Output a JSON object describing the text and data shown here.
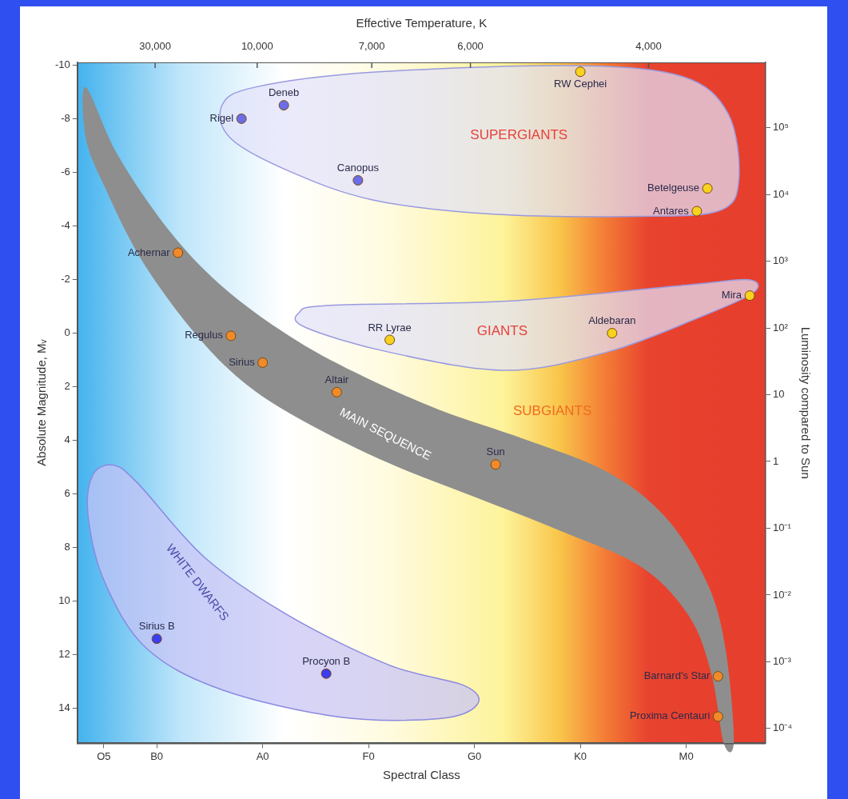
{
  "chart_data": {
    "type": "scatter",
    "x2label": "Effective Temperature, K",
    "xlabel": "Spectral Class",
    "ylabel": "Absolute Magnitude, Mᵥ",
    "y2label": "Luminosity compared to Sun",
    "categories": [
      null,
      null,
      "O5",
      null,
      null,
      null,
      null,
      "B0",
      null,
      null,
      null,
      null,
      null,
      null,
      null,
      null,
      null,
      "A0",
      null,
      null,
      null,
      null,
      null,
      null,
      null,
      null,
      null,
      "F0",
      null,
      null,
      null,
      null,
      null,
      null,
      null,
      null,
      null,
      "G0",
      null,
      null,
      null,
      null,
      null,
      null,
      null,
      null,
      null,
      "K0",
      null,
      null,
      null,
      null,
      null,
      null,
      null,
      null,
      null,
      "M0",
      null,
      null,
      null,
      null,
      null,
      null,
      null
    ],
    "ylim": [
      15.3,
      -10.1
    ],
    "yticks": [
      -10,
      -8,
      -6,
      -4,
      -2,
      0,
      2,
      4,
      6,
      8,
      10,
      12,
      14
    ],
    "log": "y2",
    "y2lim": [
      6e-05,
      950000
    ],
    "y2ticks": [
      {
        "value": 100000,
        "label": "10⁵"
      },
      {
        "value": 10000,
        "label": "10⁴"
      },
      {
        "value": 1000,
        "label": "10³"
      },
      {
        "value": 100,
        "label": "10²"
      },
      10,
      1,
      {
        "value": 0.1,
        "label": "10⁻¹"
      },
      {
        "value": 0.01,
        "label": "10⁻²"
      },
      {
        "value": 0.001,
        "label": "10⁻³"
      },
      {
        "value": 0.0001,
        "label": "10⁻⁴"
      }
    ],
    "marker": "circle",
    "series": [
      {
        "name": "Rigel",
        "color": "#6b6ee8",
        "values": [
          null,
          null,
          null,
          null,
          null,
          null,
          null,
          null,
          null,
          null,
          null,
          null,
          null,
          null,
          null,
          -8.0,
          null,
          null,
          null,
          null,
          null,
          null,
          null,
          null,
          null,
          null,
          null,
          null,
          null,
          null,
          null,
          null,
          null,
          null,
          null,
          null,
          null,
          null,
          null,
          null,
          null,
          null,
          null,
          null,
          null,
          null,
          null,
          null,
          null,
          null,
          null,
          null,
          null,
          null,
          null,
          null,
          null,
          null,
          null,
          null,
          null,
          null,
          null,
          null,
          null
        ]
      },
      {
        "name": "Deneb",
        "color": "#6b6ee8",
        "values": [
          null,
          null,
          null,
          null,
          null,
          null,
          null,
          null,
          null,
          null,
          null,
          null,
          null,
          null,
          null,
          null,
          null,
          null,
          null,
          -8.5,
          null,
          null,
          null,
          null,
          null,
          null,
          null,
          null,
          null,
          null,
          null,
          null,
          null,
          null,
          null,
          null,
          null,
          null,
          null,
          null,
          null,
          null,
          null,
          null,
          null,
          null,
          null,
          null,
          null,
          null,
          null,
          null,
          null,
          null,
          null,
          null,
          null,
          null,
          null,
          null,
          null,
          null,
          null,
          null,
          null
        ]
      },
      {
        "name": "Canopus",
        "color": "#6b6ee8",
        "values": [
          null,
          null,
          null,
          null,
          null,
          null,
          null,
          null,
          null,
          null,
          null,
          null,
          null,
          null,
          null,
          null,
          null,
          null,
          null,
          null,
          null,
          null,
          null,
          null,
          null,
          null,
          -5.7,
          null,
          null,
          null,
          null,
          null,
          null,
          null,
          null,
          null,
          null,
          null,
          null,
          null,
          null,
          null,
          null,
          null,
          null,
          null,
          null,
          null,
          null,
          null,
          null,
          null,
          null,
          null,
          null,
          null,
          null,
          null,
          null,
          null,
          null,
          null,
          null,
          null,
          null
        ]
      },
      {
        "name": "RW Cephei",
        "color": "#f7d21e",
        "values": [
          null,
          null,
          null,
          null,
          null,
          null,
          null,
          null,
          null,
          null,
          null,
          null,
          null,
          null,
          null,
          null,
          null,
          null,
          null,
          null,
          null,
          null,
          null,
          null,
          null,
          null,
          null,
          null,
          null,
          null,
          null,
          null,
          null,
          null,
          null,
          null,
          null,
          null,
          null,
          null,
          null,
          null,
          null,
          null,
          null,
          null,
          null,
          -9.75,
          null,
          null,
          null,
          null,
          null,
          null,
          null,
          null,
          null,
          null,
          null,
          null,
          null,
          null,
          null,
          null,
          null
        ]
      },
      {
        "name": "Betelgeuse",
        "color": "#f7d21e",
        "values": [
          null,
          null,
          null,
          null,
          null,
          null,
          null,
          null,
          null,
          null,
          null,
          null,
          null,
          null,
          null,
          null,
          null,
          null,
          null,
          null,
          null,
          null,
          null,
          null,
          null,
          null,
          null,
          null,
          null,
          null,
          null,
          null,
          null,
          null,
          null,
          null,
          null,
          null,
          null,
          null,
          null,
          null,
          null,
          null,
          null,
          null,
          null,
          null,
          null,
          null,
          null,
          null,
          null,
          null,
          null,
          null,
          null,
          null,
          null,
          -5.4,
          null,
          null,
          null,
          null,
          null
        ]
      },
      {
        "name": "Antares",
        "color": "#f7d21e",
        "values": [
          null,
          null,
          null,
          null,
          null,
          null,
          null,
          null,
          null,
          null,
          null,
          null,
          null,
          null,
          null,
          null,
          null,
          null,
          null,
          null,
          null,
          null,
          null,
          null,
          null,
          null,
          null,
          null,
          null,
          null,
          null,
          null,
          null,
          null,
          null,
          null,
          null,
          null,
          null,
          null,
          null,
          null,
          null,
          null,
          null,
          null,
          null,
          null,
          null,
          null,
          null,
          null,
          null,
          null,
          null,
          null,
          null,
          null,
          -4.55,
          null,
          null,
          null,
          null,
          null,
          null
        ]
      },
      {
        "name": "RR Lyrae",
        "color": "#f7d21e",
        "values": [
          null,
          null,
          null,
          null,
          null,
          null,
          null,
          null,
          null,
          null,
          null,
          null,
          null,
          null,
          null,
          null,
          null,
          null,
          null,
          null,
          null,
          null,
          null,
          null,
          null,
          null,
          null,
          null,
          null,
          0.25,
          null,
          null,
          null,
          null,
          null,
          null,
          null,
          null,
          null,
          null,
          null,
          null,
          null,
          null,
          null,
          null,
          null,
          null,
          null,
          null,
          null,
          null,
          null,
          null,
          null,
          null,
          null,
          null,
          null,
          null,
          null,
          null,
          null,
          null,
          null
        ]
      },
      {
        "name": "Aldebaran",
        "color": "#f7d21e",
        "values": [
          null,
          null,
          null,
          null,
          null,
          null,
          null,
          null,
          null,
          null,
          null,
          null,
          null,
          null,
          null,
          null,
          null,
          null,
          null,
          null,
          null,
          null,
          null,
          null,
          null,
          null,
          null,
          null,
          null,
          null,
          null,
          null,
          null,
          null,
          null,
          null,
          null,
          null,
          null,
          null,
          null,
          null,
          null,
          null,
          null,
          null,
          null,
          null,
          null,
          null,
          0.0,
          null,
          null,
          null,
          null,
          null,
          null,
          null,
          null,
          null,
          null,
          null,
          null,
          null,
          null
        ]
      },
      {
        "name": "Mira",
        "color": "#f7d21e",
        "values": [
          null,
          null,
          null,
          null,
          null,
          null,
          null,
          null,
          null,
          null,
          null,
          null,
          null,
          null,
          null,
          null,
          null,
          null,
          null,
          null,
          null,
          null,
          null,
          null,
          null,
          null,
          null,
          null,
          null,
          null,
          null,
          null,
          null,
          null,
          null,
          null,
          null,
          null,
          null,
          null,
          null,
          null,
          null,
          null,
          null,
          null,
          null,
          null,
          null,
          null,
          null,
          null,
          null,
          null,
          null,
          null,
          null,
          null,
          null,
          null,
          null,
          null,
          null,
          -1.4,
          null
        ]
      },
      {
        "name": "Achernar",
        "color": "#f08a2a",
        "values": [
          null,
          null,
          null,
          null,
          null,
          null,
          null,
          null,
          null,
          -3.0,
          null,
          null,
          null,
          null,
          null,
          null,
          null,
          null,
          null,
          null,
          null,
          null,
          null,
          null,
          null,
          null,
          null,
          null,
          null,
          null,
          null,
          null,
          null,
          null,
          null,
          null,
          null,
          null,
          null,
          null,
          null,
          null,
          null,
          null,
          null,
          null,
          null,
          null,
          null,
          null,
          null,
          null,
          null,
          null,
          null,
          null,
          null,
          null,
          null,
          null,
          null,
          null,
          null,
          null,
          null
        ]
      },
      {
        "name": "Regulus",
        "color": "#f08a2a",
        "values": [
          null,
          null,
          null,
          null,
          null,
          null,
          null,
          null,
          null,
          null,
          null,
          null,
          null,
          null,
          0.1,
          null,
          null,
          null,
          null,
          null,
          null,
          null,
          null,
          null,
          null,
          null,
          null,
          null,
          null,
          null,
          null,
          null,
          null,
          null,
          null,
          null,
          null,
          null,
          null,
          null,
          null,
          null,
          null,
          null,
          null,
          null,
          null,
          null,
          null,
          null,
          null,
          null,
          null,
          null,
          null,
          null,
          null,
          null,
          null,
          null,
          null,
          null,
          null,
          null,
          null
        ]
      },
      {
        "name": "Sirius",
        "color": "#f08a2a",
        "values": [
          null,
          null,
          null,
          null,
          null,
          null,
          null,
          null,
          null,
          null,
          null,
          null,
          null,
          null,
          null,
          null,
          null,
          1.1,
          null,
          null,
          null,
          null,
          null,
          null,
          null,
          null,
          null,
          null,
          null,
          null,
          null,
          null,
          null,
          null,
          null,
          null,
          null,
          null,
          null,
          null,
          null,
          null,
          null,
          null,
          null,
          null,
          null,
          null,
          null,
          null,
          null,
          null,
          null,
          null,
          null,
          null,
          null,
          null,
          null,
          null,
          null,
          null,
          null,
          null,
          null
        ]
      },
      {
        "name": "Altair",
        "color": "#f08a2a",
        "values": [
          null,
          null,
          null,
          null,
          null,
          null,
          null,
          null,
          null,
          null,
          null,
          null,
          null,
          null,
          null,
          null,
          null,
          null,
          null,
          null,
          null,
          null,
          null,
          null,
          2.2,
          null,
          null,
          null,
          null,
          null,
          null,
          null,
          null,
          null,
          null,
          null,
          null,
          null,
          null,
          null,
          null,
          null,
          null,
          null,
          null,
          null,
          null,
          null,
          null,
          null,
          null,
          null,
          null,
          null,
          null,
          null,
          null,
          null,
          null,
          null,
          null,
          null,
          null,
          null,
          null
        ]
      },
      {
        "name": "Sun",
        "color": "#f08a2a",
        "values": [
          null,
          null,
          null,
          null,
          null,
          null,
          null,
          null,
          null,
          null,
          null,
          null,
          null,
          null,
          null,
          null,
          null,
          null,
          null,
          null,
          null,
          null,
          null,
          null,
          null,
          null,
          null,
          null,
          null,
          null,
          null,
          null,
          null,
          null,
          null,
          null,
          null,
          null,
          null,
          4.9,
          null,
          null,
          null,
          null,
          null,
          null,
          null,
          null,
          null,
          null,
          null,
          null,
          null,
          null,
          null,
          null,
          null,
          null,
          null,
          null,
          null,
          null,
          null,
          null,
          null
        ]
      },
      {
        "name": "Barnard's Star",
        "color": "#f08a2a",
        "values": [
          null,
          null,
          null,
          null,
          null,
          null,
          null,
          null,
          null,
          null,
          null,
          null,
          null,
          null,
          null,
          null,
          null,
          null,
          null,
          null,
          null,
          null,
          null,
          null,
          null,
          null,
          null,
          null,
          null,
          null,
          null,
          null,
          null,
          null,
          null,
          null,
          null,
          null,
          null,
          null,
          null,
          null,
          null,
          null,
          null,
          null,
          null,
          null,
          null,
          null,
          null,
          null,
          null,
          null,
          null,
          null,
          null,
          null,
          null,
          null,
          12.8,
          null,
          null,
          null,
          null
        ]
      },
      {
        "name": "Proxima Centauri",
        "color": "#f08a2a",
        "values": [
          null,
          null,
          null,
          null,
          null,
          null,
          null,
          null,
          null,
          null,
          null,
          null,
          null,
          null,
          null,
          null,
          null,
          null,
          null,
          null,
          null,
          null,
          null,
          null,
          null,
          null,
          null,
          null,
          null,
          null,
          null,
          null,
          null,
          null,
          null,
          null,
          null,
          null,
          null,
          null,
          null,
          null,
          null,
          null,
          null,
          null,
          null,
          null,
          null,
          null,
          null,
          null,
          null,
          null,
          null,
          null,
          null,
          null,
          null,
          null,
          14.3,
          null,
          null,
          null,
          null
        ]
      },
      {
        "name": "Sirius B",
        "color": "#3a3ef0",
        "values": [
          null,
          null,
          null,
          null,
          null,
          null,
          null,
          11.4,
          null,
          null,
          null,
          null,
          null,
          null,
          null,
          null,
          null,
          null,
          null,
          null,
          null,
          null,
          null,
          null,
          null,
          null,
          null,
          null,
          null,
          null,
          null,
          null,
          null,
          null,
          null,
          null,
          null,
          null,
          null,
          null,
          null,
          null,
          null,
          null,
          null,
          null,
          null,
          null,
          null,
          null,
          null,
          null,
          null,
          null,
          null,
          null,
          null,
          null,
          null,
          null,
          null,
          null,
          null,
          null,
          null
        ]
      },
      {
        "name": "Procyon B",
        "color": "#3a3ef0",
        "values": [
          null,
          null,
          null,
          null,
          null,
          null,
          null,
          null,
          null,
          null,
          null,
          null,
          null,
          null,
          null,
          null,
          null,
          null,
          null,
          null,
          null,
          null,
          null,
          12.7,
          null,
          null,
          null,
          null,
          null,
          null,
          null,
          null,
          null,
          null,
          null,
          null,
          null,
          null,
          null,
          null,
          null,
          null,
          null,
          null,
          null,
          null,
          null,
          null,
          null,
          null,
          null,
          null,
          null,
          null,
          null,
          null,
          null,
          null,
          null,
          null,
          null,
          null,
          null,
          null,
          null
        ]
      }
    ],
    "annotations": [
      "30,000",
      "10,000",
      "7,000",
      "6,000",
      "4,000",
      "SUPERGIANTS",
      "GIANTS",
      "SUBGIANTS",
      "MAIN SEQUENCE",
      "WHITE DWARFS"
    ]
  }
}
